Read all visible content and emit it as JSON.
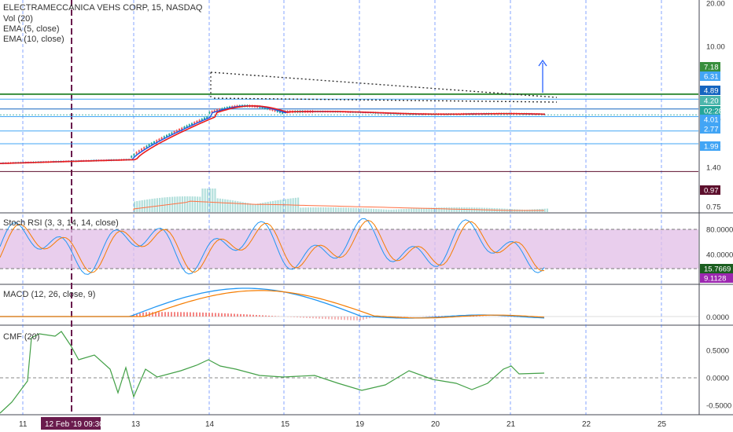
{
  "header": {
    "symbol": "ELECTRAMECCANICA VEHS CORP, 15, NASDAQ",
    "vol": "Vol (20)",
    "ema5": "EMA (5, close)",
    "ema10": "EMA (10, close)"
  },
  "panes": {
    "stoch": "Stoch RSI (3, 3, 14, 14, close)",
    "macd": "MACD (12, 26, close, 9)",
    "cmf": "CMF (20)"
  },
  "colors": {
    "up": "#26a69a",
    "down": "#ef5350",
    "ema5": "#1e53e5",
    "ema10": "#e91e1e",
    "accent_blue": "#2962ff",
    "green_line": "#4caf50",
    "volume_ma": "#ff7043",
    "stoch_band": "#e1bee7",
    "k_line": "#2196f3",
    "d_line": "#f57c00",
    "cmf": "#43a047"
  },
  "price_axis": {
    "scale": "log",
    "ticks": [
      "20.00",
      "10.00",
      "4.00",
      "1.99",
      "1.40",
      "0.75"
    ]
  },
  "price_tags": [
    {
      "label": "7.18",
      "color": "#388e3c",
      "value": 7.18
    },
    {
      "label": "6.31",
      "color": "#42a5f5",
      "value": 6.31
    },
    {
      "label": "4.89",
      "color": "#1565c0",
      "value": 4.89
    },
    {
      "label": "4.20",
      "color": "#4db6ac",
      "value": 4.2
    },
    {
      "label": "02:28",
      "color": "#26a69a",
      "value": null
    },
    {
      "label": "4.01",
      "color": "#42a5f5",
      "value": 4.01
    },
    {
      "label": "2.77",
      "color": "#42a5f5",
      "value": 2.77
    },
    {
      "label": "1.99",
      "color": "#42a5f5",
      "value": 1.99
    },
    {
      "label": "0.97",
      "color": "#5d0f2d",
      "value": 0.97
    }
  ],
  "stoch_axis": {
    "ticks": [
      "80.0000",
      "40.0000"
    ],
    "tags": [
      {
        "label": "15.7669",
        "color": "#1b5e20"
      },
      {
        "label": "9.1128",
        "color": "#9c27b0"
      }
    ]
  },
  "macd_axis": {
    "ticks": [
      "0.0000"
    ]
  },
  "cmf_axis": {
    "ticks": [
      "0.5000",
      "0.0000",
      "-0.5000"
    ]
  },
  "x_axis": {
    "ticks": [
      "11",
      "13",
      "14",
      "15",
      "19",
      "20",
      "21",
      "22",
      "25"
    ],
    "cursor_label": "12 Feb '19   09:30"
  },
  "chart_data": {
    "type": "line",
    "title": "ELECTRAMECCANICA VEHS CORP, 15, NASDAQ",
    "scale": "log",
    "ylim": [
      0.75,
      20
    ],
    "x": [
      "11",
      "12",
      "13",
      "14",
      "15",
      "19",
      "20",
      "21",
      "22"
    ],
    "series": [
      {
        "name": "EMA (5, close)",
        "values": [
          1.22,
          1.26,
          1.42,
          5.1,
          5.3,
          4.3,
          4.6,
          4.25,
          null
        ]
      },
      {
        "name": "EMA (10, close)",
        "values": [
          1.21,
          1.25,
          1.38,
          4.7,
          5.4,
          4.35,
          4.55,
          4.28,
          null
        ]
      }
    ],
    "levels": [
      7.18,
      6.31,
      4.89,
      4.2,
      4.01,
      2.77,
      1.99,
      0.97
    ]
  }
}
